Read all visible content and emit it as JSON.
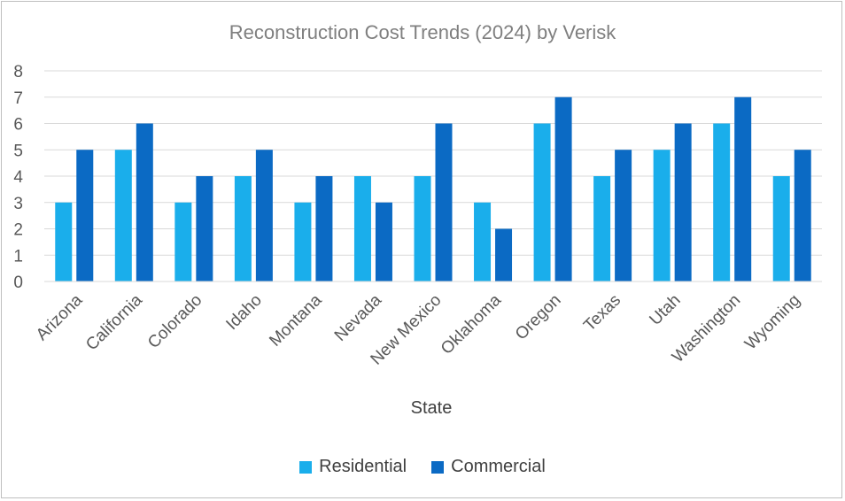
{
  "chart_data": {
    "type": "bar",
    "title": "Reconstruction Cost Trends (2024) by Verisk",
    "xlabel": "State",
    "ylabel": "",
    "ylim": [
      0,
      8
    ],
    "yticks": [
      0,
      1,
      2,
      3,
      4,
      5,
      6,
      7,
      8
    ],
    "categories": [
      "Arizona",
      "California",
      "Colorado",
      "Idaho",
      "Montana",
      "Nevada",
      "New Mexico",
      "Oklahoma",
      "Oregon",
      "Texas",
      "Utah",
      "Washington",
      "Wyoming"
    ],
    "series": [
      {
        "name": "Residential",
        "color": "#1aaeeb",
        "values": [
          3,
          5,
          3,
          4,
          3,
          4,
          4,
          3,
          6,
          4,
          5,
          6,
          4
        ]
      },
      {
        "name": "Commercial",
        "color": "#0b6ac4",
        "values": [
          5,
          6,
          4,
          5,
          4,
          3,
          6,
          2,
          7,
          5,
          6,
          7,
          5
        ]
      }
    ],
    "grid": true,
    "legend_position": "bottom"
  }
}
